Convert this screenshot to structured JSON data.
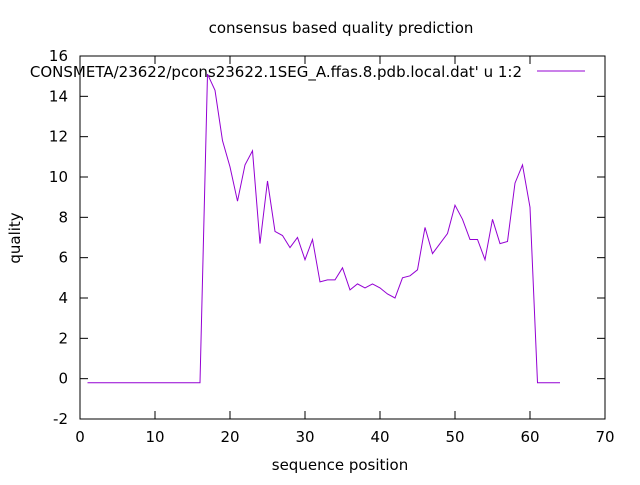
{
  "chart_data": {
    "type": "line",
    "title": "consensus based quality prediction",
    "xlabel": "sequence position",
    "ylabel": "quality",
    "xlim": [
      0,
      70
    ],
    "ylim": [
      -2,
      16
    ],
    "x_ticks": [
      0,
      10,
      20,
      30,
      40,
      50,
      60,
      70
    ],
    "y_ticks": [
      -2,
      0,
      2,
      4,
      6,
      8,
      10,
      12,
      14,
      16
    ],
    "grid": false,
    "legend_position": "top-right",
    "series": [
      {
        "name": "CONSMETA/23622/pcons23622.1SEG_A.ffas.8.pdb.local.dat' u 1:2",
        "color": "#9400D3",
        "x": [
          1,
          2,
          3,
          4,
          5,
          6,
          7,
          8,
          9,
          10,
          11,
          12,
          13,
          14,
          15,
          16,
          17,
          18,
          19,
          20,
          21,
          22,
          23,
          24,
          25,
          26,
          27,
          28,
          29,
          30,
          31,
          32,
          33,
          34,
          35,
          36,
          37,
          38,
          39,
          40,
          41,
          42,
          43,
          44,
          45,
          46,
          47,
          48,
          49,
          50,
          51,
          52,
          53,
          54,
          55,
          56,
          57,
          58,
          59,
          60,
          61,
          62,
          63,
          64
        ],
        "y": [
          -0.2,
          -0.2,
          -0.2,
          -0.2,
          -0.2,
          -0.2,
          -0.2,
          -0.2,
          -0.2,
          -0.2,
          -0.2,
          -0.2,
          -0.2,
          -0.2,
          -0.2,
          -0.2,
          15.1,
          14.3,
          11.8,
          10.5,
          8.8,
          10.6,
          11.3,
          6.7,
          9.8,
          7.3,
          7.1,
          6.5,
          7.0,
          5.9,
          6.9,
          4.8,
          4.9,
          4.9,
          5.5,
          4.4,
          4.7,
          4.5,
          4.7,
          4.5,
          4.2,
          4.0,
          5.0,
          5.1,
          5.4,
          7.5,
          6.2,
          6.7,
          7.2,
          8.6,
          7.9,
          6.9,
          6.9,
          5.9,
          7.9,
          6.7,
          6.8,
          9.7,
          10.6,
          8.5,
          -0.2,
          -0.2,
          -0.2,
          -0.2
        ]
      }
    ]
  }
}
